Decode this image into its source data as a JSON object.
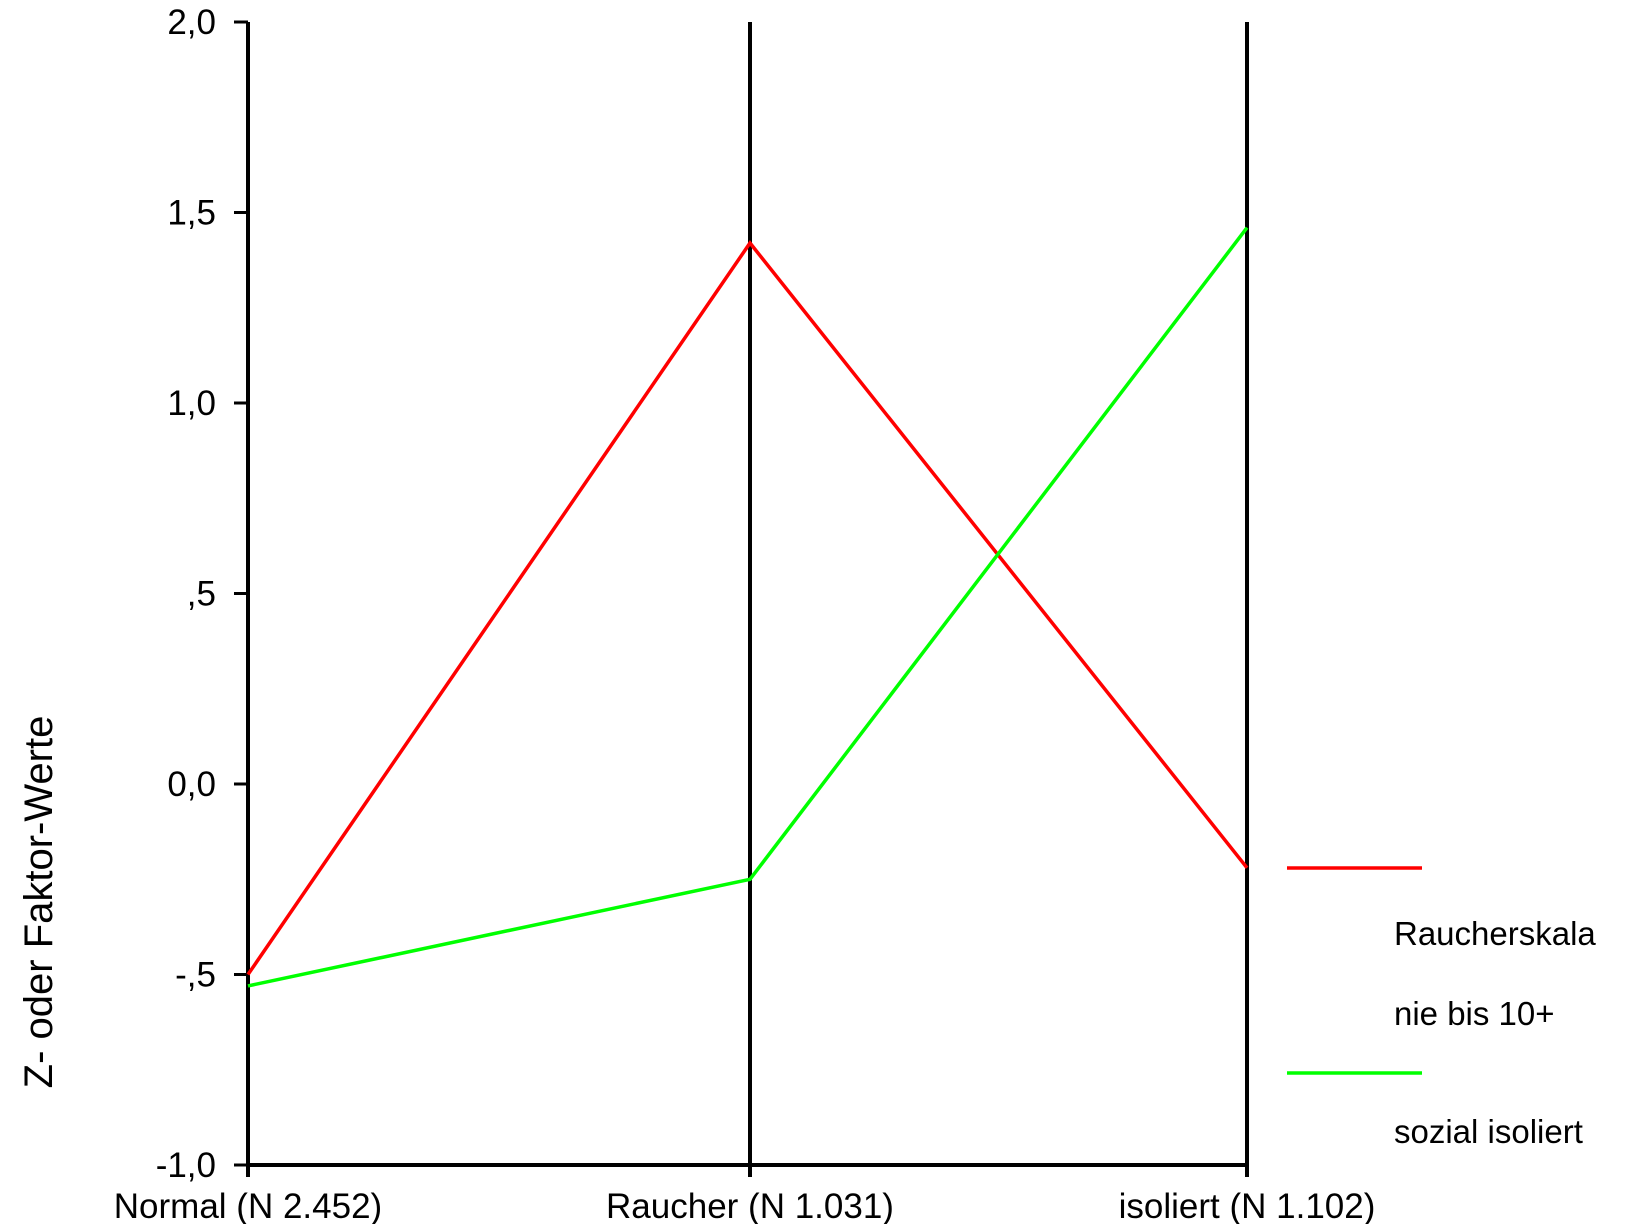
{
  "chart_data": {
    "type": "line",
    "title": "",
    "xlabel": "",
    "ylabel": "Z- oder Faktor-Werte",
    "categories": [
      "Normal (N 2.452)",
      "Raucher (N 1.031)",
      "isoliert (N 1.102)"
    ],
    "ylim": [
      -1.0,
      2.0
    ],
    "yticks": [
      {
        "value": 2.0,
        "label": "2,0"
      },
      {
        "value": 1.5,
        "label": "1,5"
      },
      {
        "value": 1.0,
        "label": "1,0"
      },
      {
        "value": 0.5,
        "label": ",5"
      },
      {
        "value": 0.0,
        "label": "0,0"
      },
      {
        "value": -0.5,
        "label": "-,5"
      },
      {
        "value": -1.0,
        "label": "-1,0"
      }
    ],
    "series": [
      {
        "name": "Raucherskala nie bis 10+",
        "legend_lines": [
          "Raucherskala",
          "nie bis 10+"
        ],
        "color": "#ff0000",
        "values": [
          -0.5,
          1.42,
          -0.22
        ]
      },
      {
        "name": "sozial isoliert",
        "legend_lines": [
          "sozial isoliert"
        ],
        "color": "#00ff00",
        "values": [
          -0.53,
          -0.25,
          1.46
        ]
      }
    ],
    "vertical_axes_at_categories": true,
    "grid": false,
    "legend_position": "right"
  }
}
